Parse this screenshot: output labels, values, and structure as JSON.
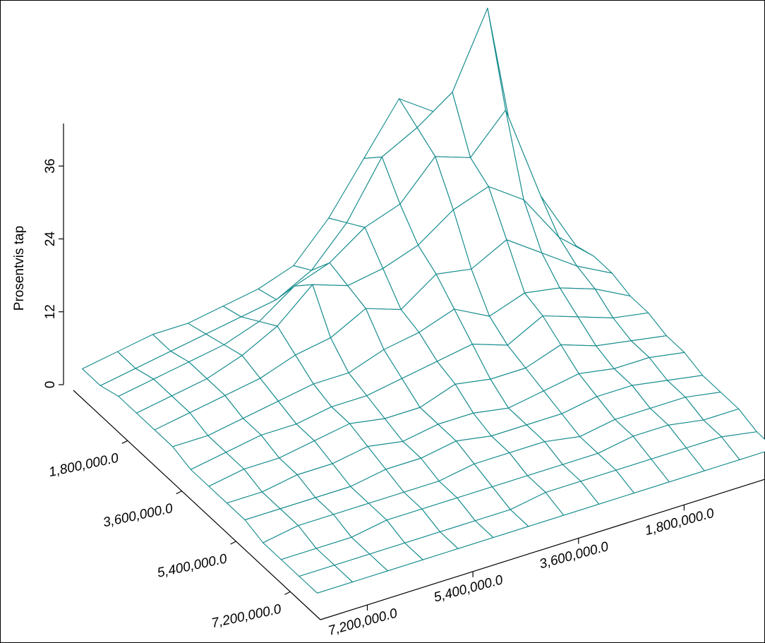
{
  "chart_data": {
    "type": "surface",
    "zlabel": "Prosentvis tap",
    "color": "#138a8c",
    "x": [
      0,
      600000,
      1200000,
      1800000,
      2400000,
      3000000,
      3600000,
      4200000,
      4800000,
      5400000,
      6000000,
      6600000,
      7200000,
      7800000
    ],
    "y": [
      0,
      600000,
      1200000,
      1800000,
      2400000,
      3000000,
      3600000,
      4200000,
      4800000,
      5400000,
      6000000,
      6600000,
      7200000,
      7800000
    ],
    "z": [
      [
        3,
        8,
        20,
        26,
        30,
        22,
        14,
        8,
        6,
        5,
        4,
        4,
        3,
        2
      ],
      [
        4,
        12,
        44,
        32,
        28,
        25,
        16,
        10,
        7,
        6,
        5,
        4,
        3,
        2
      ],
      [
        4,
        14,
        30,
        24,
        26,
        20,
        18,
        14,
        12,
        8,
        6,
        5,
        4,
        3
      ],
      [
        5,
        10,
        18,
        22,
        20,
        16,
        14,
        13,
        15,
        10,
        7,
        5,
        4,
        3
      ],
      [
        5,
        8,
        12,
        16,
        13,
        14,
        10,
        12,
        9,
        8,
        6,
        5,
        4,
        3
      ],
      [
        4,
        7,
        9,
        10,
        8,
        11,
        9,
        8,
        6,
        6,
        5,
        4,
        3,
        3
      ],
      [
        4,
        5,
        7,
        9,
        6,
        8,
        7,
        6,
        5,
        5,
        4,
        4,
        3,
        2
      ],
      [
        3,
        4,
        5,
        7,
        5,
        5,
        6,
        4,
        4,
        5,
        4,
        3,
        3,
        2
      ],
      [
        3,
        4,
        4,
        5,
        4,
        3,
        4,
        4,
        3,
        4,
        3,
        3,
        2,
        2
      ],
      [
        2,
        3,
        4,
        4,
        3,
        3,
        3,
        4,
        3,
        3,
        2,
        2,
        2,
        2
      ],
      [
        2,
        3,
        3,
        3,
        2,
        3,
        3,
        3,
        2,
        2,
        2,
        2,
        2,
        1
      ],
      [
        2,
        2,
        3,
        3,
        2,
        2,
        2,
        2,
        2,
        2,
        2,
        1,
        1,
        1
      ],
      [
        1,
        2,
        2,
        2,
        2,
        2,
        2,
        1,
        1,
        1,
        1,
        1,
        1,
        1
      ],
      [
        1,
        1,
        1,
        1,
        1,
        1,
        1,
        1,
        1,
        1,
        1,
        1,
        1,
        1
      ]
    ],
    "xlim": [
      0,
      8200000
    ],
    "ylim": [
      0,
      8000000
    ],
    "zlim": [
      0,
      43
    ],
    "xticks": [
      {
        "value": 1800000,
        "label": "1,800,000.0"
      },
      {
        "value": 3600000,
        "label": "3,600,000.0"
      },
      {
        "value": 5400000,
        "label": "5,400,000.0"
      },
      {
        "value": 7200000,
        "label": "7,200,000.0"
      }
    ],
    "yticks": [
      {
        "value": 7200000,
        "label": "7,200,000.0"
      },
      {
        "value": 5400000,
        "label": "5,400,000.0"
      },
      {
        "value": 3600000,
        "label": "3,600,000.0"
      },
      {
        "value": 1800000,
        "label": "1,800,000.0"
      }
    ],
    "zticks": [
      0,
      12,
      24,
      36
    ]
  }
}
